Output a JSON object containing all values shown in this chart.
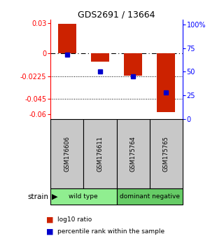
{
  "title": "GDS2691 / 13664",
  "samples": [
    "GSM176606",
    "GSM176611",
    "GSM175764",
    "GSM175765"
  ],
  "log10_ratio": [
    0.029,
    -0.008,
    -0.022,
    -0.058
  ],
  "percentile_rank": [
    68,
    50,
    45,
    28
  ],
  "groups": [
    {
      "label": "wild type",
      "samples_idx": [
        0,
        1
      ],
      "color": "#90ee90"
    },
    {
      "label": "dominant negative",
      "samples_idx": [
        2,
        3
      ],
      "color": "#66cc66"
    }
  ],
  "ylim_left": [
    -0.065,
    0.033
  ],
  "yticks_left": [
    0.03,
    0,
    -0.0225,
    -0.045,
    -0.06
  ],
  "ytick_labels_left": [
    "0.03",
    "0",
    "-0.0225",
    "-0.045",
    "-0.06"
  ],
  "ylim_right": [
    0,
    105
  ],
  "yticks_right": [
    100,
    75,
    50,
    25,
    0
  ],
  "ytick_labels_right": [
    "100%",
    "75",
    "50",
    "25",
    "0"
  ],
  "bar_color": "#cc2200",
  "dot_color": "#0000cc",
  "hline_y": 0,
  "dotted_lines": [
    -0.0225,
    -0.045
  ],
  "bar_width": 0.55,
  "group_defs": [
    {
      "xstart": 0.5,
      "xend": 2.5,
      "label": "wild type",
      "color": "#90ee90"
    },
    {
      "xstart": 2.5,
      "xend": 4.5,
      "label": "dominant negative",
      "color": "#66cc66"
    }
  ]
}
